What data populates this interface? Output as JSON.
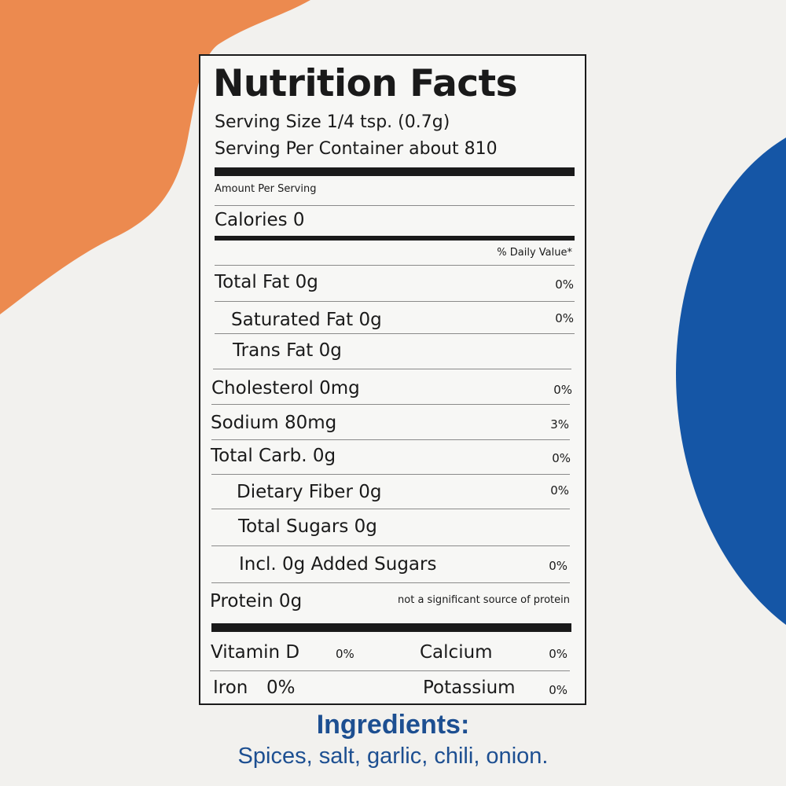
{
  "colors": {
    "orange": "#ec8a4f",
    "blue": "#1556a6",
    "ink": "#1a1a1a",
    "ingredients": "#1d4f91"
  },
  "label": {
    "title": "Nutrition Facts",
    "serving_size": "Serving Size 1/4 tsp. (0.7g)",
    "servings_per_container": "Serving Per Container about 810",
    "amount_per_serving": "Amount Per Serving",
    "calories": "Calories 0",
    "daily_value_header": "% Daily Value*",
    "rows": [
      {
        "label": "Total Fat 0g",
        "value": "0%"
      },
      {
        "label": "Saturated Fat 0g",
        "value": "0%"
      },
      {
        "label": "Trans Fat 0g",
        "value": ""
      },
      {
        "label": "Cholesterol 0mg",
        "value": "0%"
      },
      {
        "label": "Sodium 80mg",
        "value": "3%"
      },
      {
        "label": "Total Carb. 0g",
        "value": "0%"
      },
      {
        "label": "Dietary Fiber 0g",
        "value": "0%"
      },
      {
        "label": "Total Sugars 0g",
        "value": ""
      },
      {
        "label": "Incl. 0g Added Sugars",
        "value": "0%"
      },
      {
        "label": "Protein 0g",
        "value": "not a significant source of protein"
      }
    ],
    "vitamins": [
      {
        "label": "Vitamin D",
        "value": "0%"
      },
      {
        "label": "Calcium",
        "value": "0%"
      },
      {
        "label": "Iron",
        "value": "0%"
      },
      {
        "label": "Potassium",
        "value": "0%"
      }
    ]
  },
  "ingredients": {
    "title": "Ingredients:",
    "text": "Spices, salt, garlic, chili, onion."
  }
}
